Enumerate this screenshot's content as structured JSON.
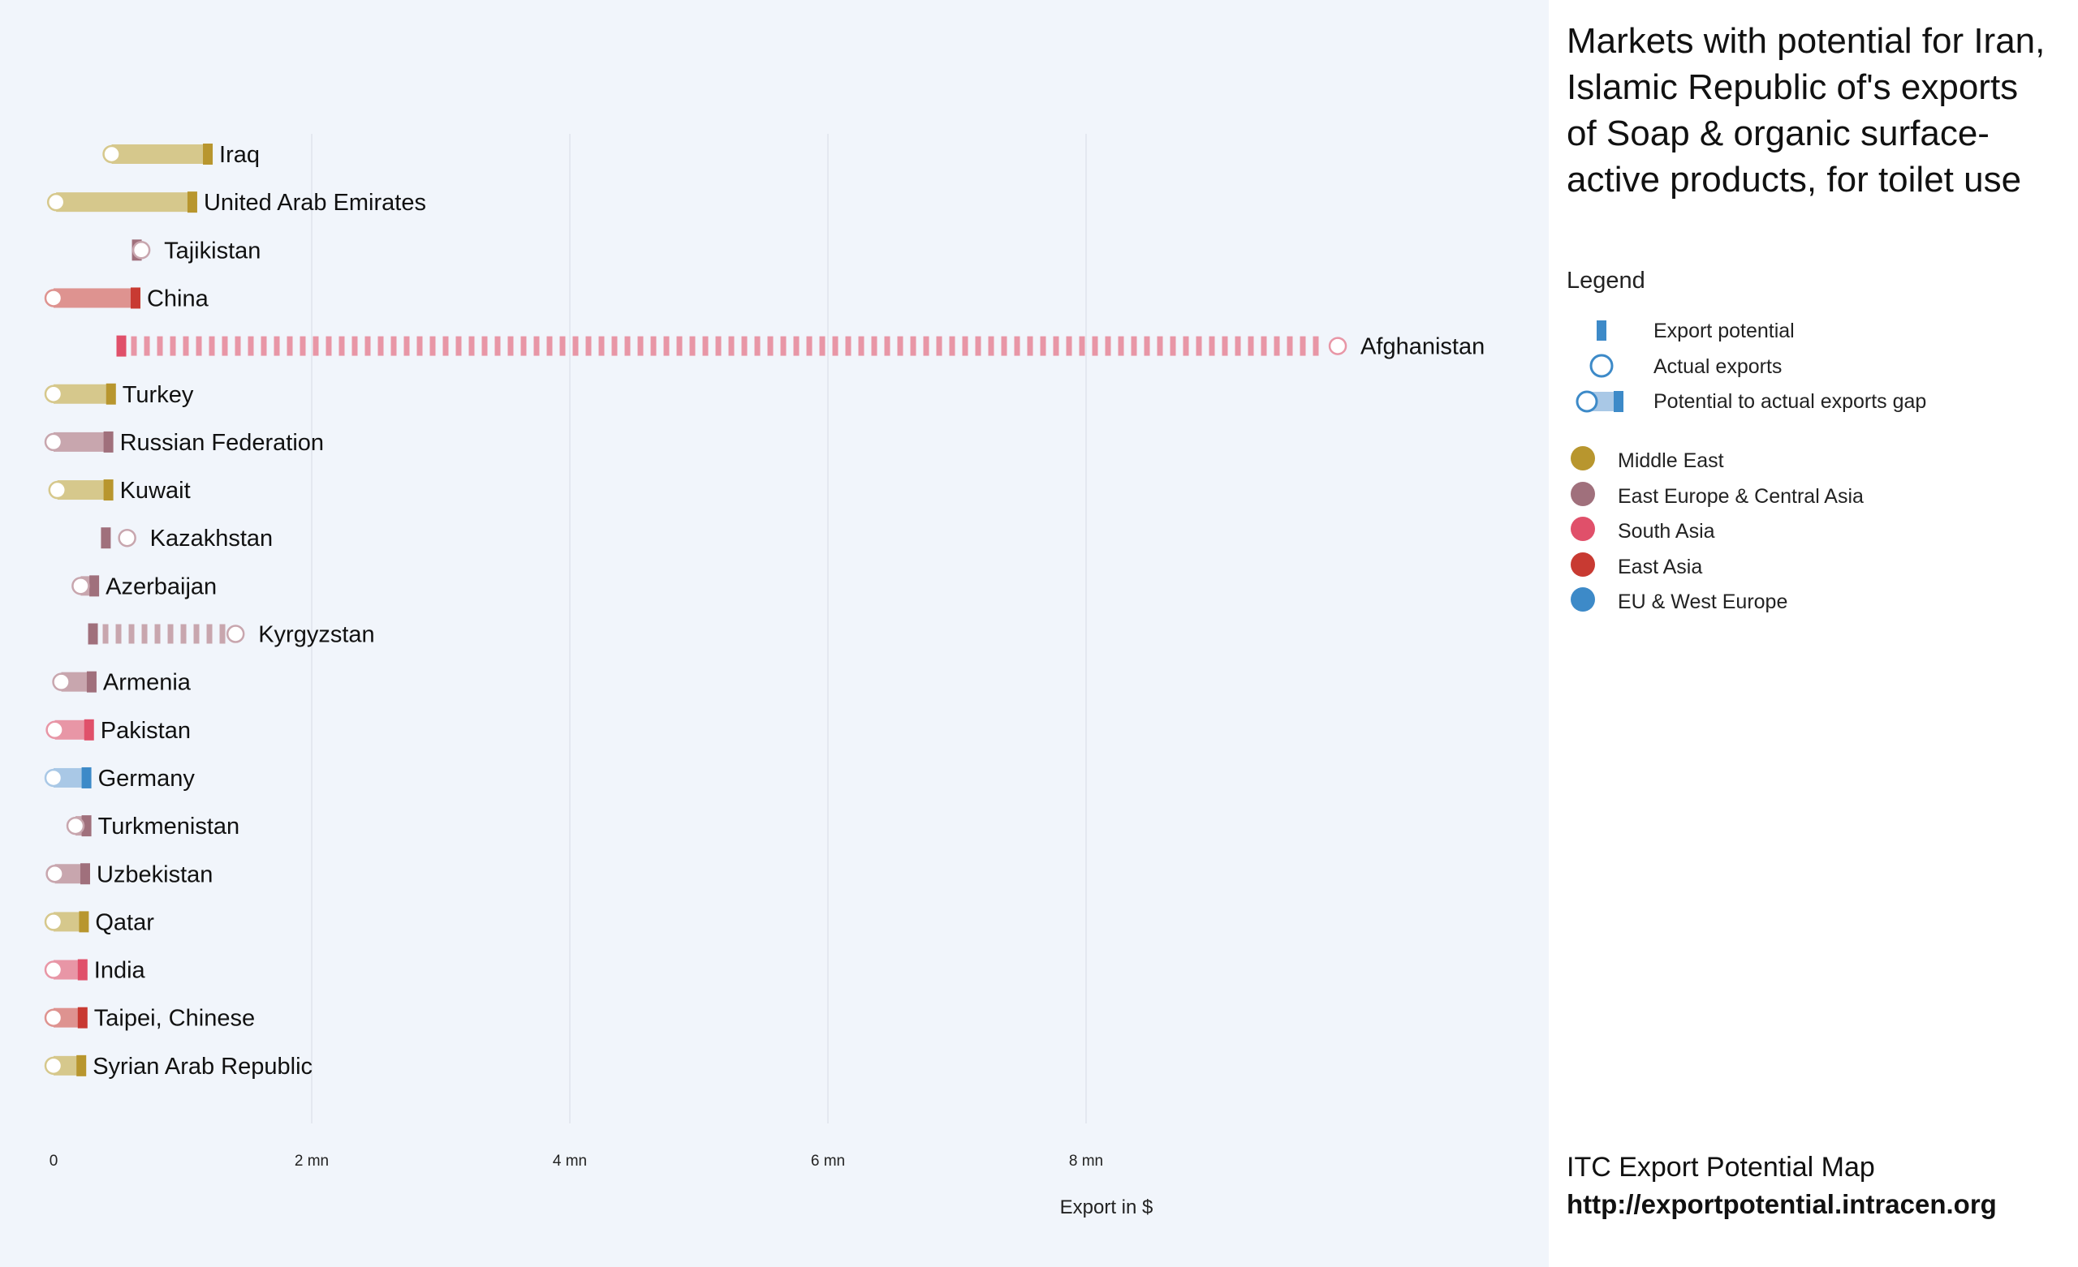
{
  "title": "Markets with potential for Iran, Islamic Republic of's exports of Soap & organic surface-active products, for toilet use",
  "legend": {
    "title": "Legend",
    "export_potential": "Export potential",
    "actual_exports": "Actual exports",
    "gap": "Potential to actual exports gap",
    "regions": [
      {
        "name": "Middle East",
        "color": "#b8962e"
      },
      {
        "name": "East Europe & Central Asia",
        "color": "#a0707c"
      },
      {
        "name": "South Asia",
        "color": "#e0506a"
      },
      {
        "name": "East Asia",
        "color": "#c83a32"
      },
      {
        "name": "EU & West Europe",
        "color": "#3d8ac8"
      }
    ]
  },
  "footer": {
    "line1": "ITC Export Potential Map",
    "line2": "http://exportpotential.intracen.org"
  },
  "chart_data": {
    "type": "bar",
    "xlabel": "Export in $",
    "ylabel": "",
    "xlim": [
      0,
      11.2
    ],
    "xunit": "mn",
    "xticks": [
      {
        "value": 0,
        "label": "0"
      },
      {
        "value": 2,
        "label": "2 mn"
      },
      {
        "value": 4,
        "label": "4 mn"
      },
      {
        "value": 6,
        "label": "6 mn"
      },
      {
        "value": 8,
        "label": "8 mn"
      }
    ],
    "series": [
      {
        "name": "Export potential",
        "encoding": "bar"
      },
      {
        "name": "Actual exports",
        "encoding": "circle"
      }
    ],
    "markets": [
      {
        "name": "Iraq",
        "region": "Middle East",
        "potential": 1.17,
        "actual": 0.45
      },
      {
        "name": "United Arab Emirates",
        "region": "Middle East",
        "potential": 1.05,
        "actual": 0.02
      },
      {
        "name": "Tajikistan",
        "region": "East Europe & Central Asia",
        "potential": 0.62,
        "actual": 0.68
      },
      {
        "name": "China",
        "region": "East Asia",
        "potential": 0.61,
        "actual": 0.0
      },
      {
        "name": "Afghanistan",
        "region": "South Asia",
        "potential": 0.5,
        "actual": 9.95
      },
      {
        "name": "Turkey",
        "region": "Middle East",
        "potential": 0.42,
        "actual": 0.0
      },
      {
        "name": "Russian Federation",
        "region": "East Europe & Central Asia",
        "potential": 0.4,
        "actual": 0.0
      },
      {
        "name": "Kuwait",
        "region": "Middle East",
        "potential": 0.4,
        "actual": 0.03
      },
      {
        "name": "Kazakhstan",
        "region": "East Europe & Central Asia",
        "potential": 0.38,
        "actual": 0.57
      },
      {
        "name": "Azerbaijan",
        "region": "East Europe & Central Asia",
        "potential": 0.29,
        "actual": 0.21
      },
      {
        "name": "Kyrgyzstan",
        "region": "East Europe & Central Asia",
        "potential": 0.28,
        "actual": 1.41
      },
      {
        "name": "Armenia",
        "region": "East Europe & Central Asia",
        "potential": 0.27,
        "actual": 0.06
      },
      {
        "name": "Pakistan",
        "region": "South Asia",
        "potential": 0.25,
        "actual": 0.01
      },
      {
        "name": "Germany",
        "region": "EU & West Europe",
        "potential": 0.23,
        "actual": 0.0
      },
      {
        "name": "Turkmenistan",
        "region": "East Europe & Central Asia",
        "potential": 0.23,
        "actual": 0.17
      },
      {
        "name": "Uzbekistan",
        "region": "East Europe & Central Asia",
        "potential": 0.22,
        "actual": 0.01
      },
      {
        "name": "Qatar",
        "region": "Middle East",
        "potential": 0.21,
        "actual": 0.0
      },
      {
        "name": "India",
        "region": "South Asia",
        "potential": 0.2,
        "actual": 0.0
      },
      {
        "name": "Taipei, Chinese",
        "region": "East Asia",
        "potential": 0.2,
        "actual": 0.0
      },
      {
        "name": "Syrian Arab Republic",
        "region": "Middle East",
        "potential": 0.19,
        "actual": 0.0
      }
    ]
  }
}
